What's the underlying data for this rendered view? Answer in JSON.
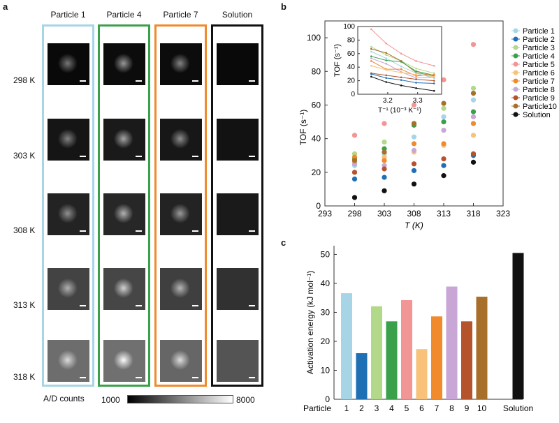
{
  "panel_a": {
    "letter": "a",
    "columns": [
      {
        "title": "Particle 1",
        "border_color": "#a8d5e5"
      },
      {
        "title": "Particle 4",
        "border_color": "#3aa04a"
      },
      {
        "title": "Particle 7",
        "border_color": "#f08a2c"
      },
      {
        "title": "Solution",
        "border_color": "#111111"
      }
    ],
    "rows": [
      "298 K",
      "303 K",
      "308 K",
      "313 K",
      "318 K"
    ],
    "tile_background_levels": [
      [
        0.05,
        0.07,
        0.07,
        0.05
      ],
      [
        0.12,
        0.15,
        0.13,
        0.1
      ],
      [
        0.2,
        0.22,
        0.2,
        0.15
      ],
      [
        0.38,
        0.4,
        0.36,
        0.28
      ],
      [
        0.62,
        0.64,
        0.58,
        0.48
      ]
    ],
    "spot_intensity": [
      0.55,
      0.7,
      0.6,
      0.0
    ],
    "colorbar": {
      "label": "A/D counts",
      "min_label": "1000",
      "max_label": "8000"
    }
  },
  "chart_data": [
    {
      "panel": "b",
      "type": "scatter",
      "title": "",
      "xlabel": "T (K)",
      "ylabel": "TOF (s⁻¹)",
      "xlim": [
        293,
        323
      ],
      "ylim": [
        0,
        110
      ],
      "xticks": [
        293,
        298,
        303,
        308,
        313,
        318,
        323
      ],
      "yticks": [
        0,
        20,
        40,
        60,
        80,
        100
      ],
      "x": [
        298,
        303,
        308,
        313,
        318
      ],
      "series": [
        {
          "name": "Particle 1",
          "color": "#a8d5e5",
          "values": [
            24,
            31,
            41,
            53,
            63
          ]
        },
        {
          "name": "Particle 2",
          "color": "#1f6fb5",
          "values": [
            16,
            17,
            21,
            24,
            30
          ]
        },
        {
          "name": "Particle 3",
          "color": "#b2d88a",
          "values": [
            31,
            38,
            49,
            58,
            70
          ]
        },
        {
          "name": "Particle 4",
          "color": "#3aa04a",
          "values": [
            28,
            34,
            48,
            50,
            56
          ]
        },
        {
          "name": "Particle 5",
          "color": "#f29595",
          "values": [
            42,
            49,
            60,
            75,
            96
          ]
        },
        {
          "name": "Particle 6",
          "color": "#f8c27a",
          "values": [
            26,
            29,
            32,
            36,
            42
          ]
        },
        {
          "name": "Particle 7",
          "color": "#f08a2c",
          "values": [
            29,
            27,
            37,
            37,
            49
          ]
        },
        {
          "name": "Particle 8",
          "color": "#c8a6d6",
          "values": [
            25,
            24,
            33,
            45,
            53
          ]
        },
        {
          "name": "Particle 9",
          "color": "#b5532a",
          "values": [
            20,
            22,
            25,
            28,
            31
          ]
        },
        {
          "name": "Particle10",
          "color": "#a86f2a",
          "values": [
            27,
            32,
            49,
            61,
            67
          ]
        },
        {
          "name": "Solution",
          "color": "#111111",
          "values": [
            5,
            9,
            13,
            18,
            26
          ]
        }
      ],
      "legend_position": "right",
      "inset": {
        "xlabel": "T⁻¹ (10⁻³ K⁻¹)",
        "ylabel": "TOF (s⁻¹)",
        "xlim": [
          3.1,
          3.38
        ],
        "ylim": [
          0,
          100
        ],
        "xticks": [
          3.2,
          3.3
        ],
        "xtick_labels": [
          "3.2",
          "3.3"
        ],
        "yticks": [
          0,
          20,
          40,
          60,
          80,
          100
        ],
        "x": [
          3.145,
          3.195,
          3.245,
          3.295,
          3.355
        ],
        "series": [
          {
            "name": "Particle 5",
            "color": "#f29595",
            "values": [
              96,
              75,
              60,
              49,
              42
            ]
          },
          {
            "name": "Particle 3",
            "color": "#b2d88a",
            "values": [
              70,
              58,
              49,
              38,
              31
            ]
          },
          {
            "name": "Particle10",
            "color": "#a86f2a",
            "values": [
              67,
              61,
              49,
              32,
              27
            ]
          },
          {
            "name": "Particle 1",
            "color": "#a8d5e5",
            "values": [
              63,
              53,
              41,
              31,
              24
            ]
          },
          {
            "name": "Particle 4",
            "color": "#3aa04a",
            "values": [
              56,
              50,
              48,
              34,
              28
            ]
          },
          {
            "name": "Particle 8",
            "color": "#c8a6d6",
            "values": [
              53,
              45,
              33,
              24,
              25
            ]
          },
          {
            "name": "Particle 7",
            "color": "#f08a2c",
            "values": [
              49,
              37,
              37,
              27,
              29
            ]
          },
          {
            "name": "Particle 6",
            "color": "#f8c27a",
            "values": [
              42,
              36,
              32,
              29,
              26
            ]
          },
          {
            "name": "Particle 9",
            "color": "#b5532a",
            "values": [
              31,
              28,
              25,
              22,
              20
            ]
          },
          {
            "name": "Particle 2",
            "color": "#1f6fb5",
            "values": [
              30,
              24,
              21,
              17,
              16
            ]
          },
          {
            "name": "Solution",
            "color": "#111111",
            "values": [
              26,
              18,
              13,
              9,
              5
            ]
          }
        ]
      }
    },
    {
      "panel": "c",
      "type": "bar",
      "title": "",
      "xlabel": "",
      "category_axis_label": "Particle",
      "ylabel": "Activation energy (kJ mol⁻¹)",
      "ylim": [
        0,
        53
      ],
      "yticks": [
        0,
        10,
        20,
        30,
        40,
        50
      ],
      "categories": [
        "1",
        "2",
        "3",
        "4",
        "5",
        "6",
        "7",
        "8",
        "9",
        "10",
        "Solution"
      ],
      "values": [
        36.6,
        15.9,
        32.1,
        26.9,
        34.2,
        17.3,
        28.6,
        38.9,
        26.9,
        35.4,
        50.5
      ],
      "colors": [
        "#a8d5e5",
        "#1f6fb5",
        "#b2d88a",
        "#3aa04a",
        "#f29595",
        "#f8c27a",
        "#f08a2c",
        "#c8a6d6",
        "#b5532a",
        "#a86f2a",
        "#111111"
      ]
    }
  ],
  "labels": {
    "b": "b",
    "c": "c"
  }
}
